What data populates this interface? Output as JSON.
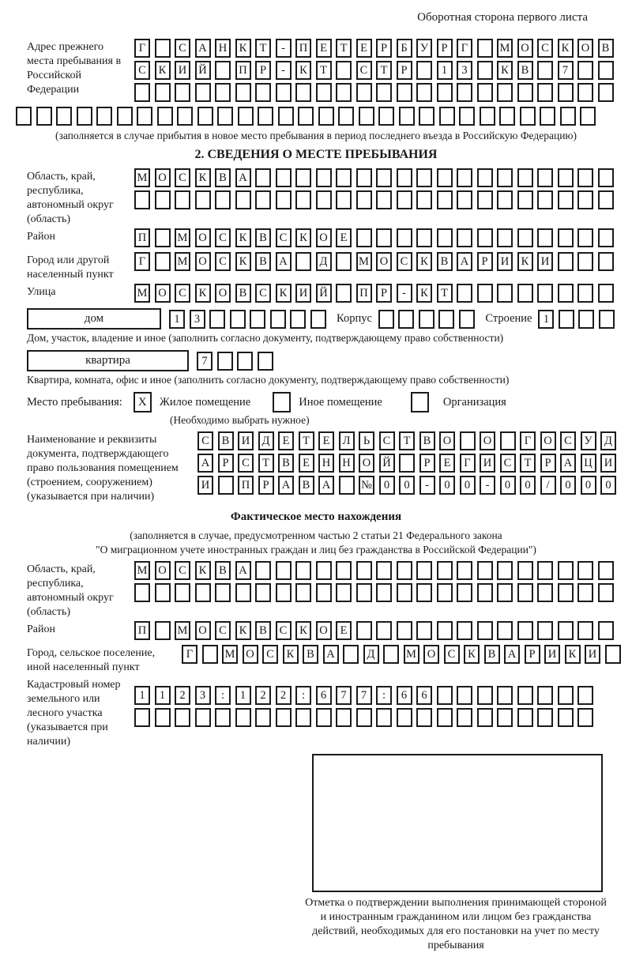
{
  "page": {
    "header_note": "Оборотная сторона первого листа"
  },
  "prev_address": {
    "label": "Адрес прежнего места пребывания в Российской Федерации",
    "row1": [
      "Г",
      "",
      "С",
      "А",
      "Н",
      "К",
      "Т",
      "-",
      "П",
      "Е",
      "Т",
      "Е",
      "Р",
      "Б",
      "У",
      "Р",
      "Г",
      "",
      "М",
      "О",
      "С",
      "К",
      "О",
      "В"
    ],
    "row2": [
      "С",
      "К",
      "И",
      "Й",
      "",
      "П",
      "Р",
      "-",
      "К",
      "Т",
      "",
      "С",
      "Т",
      "Р",
      "",
      "1",
      "3",
      "",
      "К",
      "В",
      "",
      "7",
      "",
      ""
    ],
    "row3_empty": 24,
    "row4_empty": 29,
    "caption": "(заполняется в случае прибытия в новое место пребывания в период последнего въезда в Российскую Федерацию)"
  },
  "section2": {
    "title": "2. СВЕДЕНИЯ О МЕСТЕ ПРЕБЫВАНИЯ",
    "region_label": "Область, край, республика, автономный округ (область)",
    "region_row1": [
      "М",
      "О",
      "С",
      "К",
      "В",
      "А",
      "",
      "",
      "",
      "",
      "",
      "",
      "",
      "",
      "",
      "",
      "",
      "",
      "",
      "",
      "",
      "",
      "",
      ""
    ],
    "region_row2_empty": 24,
    "district_label": "Район",
    "district_row": [
      "П",
      "",
      "М",
      "О",
      "С",
      "К",
      "В",
      "С",
      "К",
      "О",
      "Е",
      "",
      "",
      "",
      "",
      "",
      "",
      "",
      "",
      "",
      "",
      "",
      "",
      ""
    ],
    "city_label": "Город или другой населенный пункт",
    "city_row": [
      "Г",
      "",
      "М",
      "О",
      "С",
      "К",
      "В",
      "А",
      "",
      "Д",
      "",
      "М",
      "О",
      "С",
      "К",
      "В",
      "А",
      "Р",
      "И",
      "К",
      "И",
      "",
      "",
      ""
    ],
    "street_label": "Улица",
    "street_row": [
      "М",
      "О",
      "С",
      "К",
      "О",
      "В",
      "С",
      "К",
      "И",
      "Й",
      "",
      "П",
      "Р",
      "-",
      "К",
      "Т",
      "",
      "",
      "",
      "",
      "",
      "",
      "",
      ""
    ]
  },
  "house": {
    "box_label": "дом",
    "cells": [
      "1",
      "3",
      "",
      "",
      "",
      "",
      "",
      ""
    ],
    "korpus_label": "Корпус",
    "korpus_empty": 5,
    "stroenie_label": "Строение",
    "stroenie_cells": [
      "1",
      "",
      "",
      ""
    ],
    "caption": "Дом, участок, владение и иное (заполнить согласно документу, подтверждающему право собственности)"
  },
  "apartment": {
    "box_label": "квартира",
    "cells": [
      "7",
      "",
      "",
      ""
    ],
    "caption": "Квартира, комната, офис и иное (заполнить согласно документу, подтверждающему право собственности)"
  },
  "location": {
    "label": "Место пребывания:",
    "opt1_mark": "X",
    "opt1_label": "Жилое помещение",
    "opt2_mark": "",
    "opt2_label": "Иное помещение",
    "opt3_mark": "",
    "opt3_label": "Организация",
    "hint": "(Необходимо выбрать нужное)"
  },
  "doc": {
    "label": "Наименование и реквизиты документа, подтверждающего право пользования помещением (строением, сооружением) (указывается при наличии)",
    "row1": [
      "С",
      "В",
      "И",
      "Д",
      "Е",
      "Т",
      "Е",
      "Л",
      "Ь",
      "С",
      "Т",
      "В",
      "О",
      "",
      "О",
      "",
      "Г",
      "О",
      "С",
      "У",
      "Д"
    ],
    "row2": [
      "А",
      "Р",
      "С",
      "Т",
      "В",
      "Е",
      "Н",
      "Н",
      "О",
      "Й",
      "",
      "Р",
      "Е",
      "Г",
      "И",
      "С",
      "Т",
      "Р",
      "А",
      "Ц",
      "И"
    ],
    "row3": [
      "И",
      "",
      "П",
      "Р",
      "А",
      "В",
      "А",
      "",
      "№",
      "0",
      "0",
      "-",
      "0",
      "0",
      "-",
      "0",
      "0",
      "/",
      "0",
      "0",
      "0"
    ]
  },
  "actual": {
    "title": "Фактическое место нахождения",
    "caption1": "(заполняется в случае, предусмотренном частью 2 статьи 21 Федерального закона",
    "caption2": "\"О миграционном учете иностранных граждан и лиц без гражданства в Российской Федерации\")",
    "region_label": "Область, край, республика, автономный округ (область)",
    "region_row1": [
      "М",
      "О",
      "С",
      "К",
      "В",
      "А",
      "",
      "",
      "",
      "",
      "",
      "",
      "",
      "",
      "",
      "",
      "",
      "",
      "",
      "",
      "",
      "",
      "",
      ""
    ],
    "region_row2_empty": 24,
    "district_label": "Район",
    "district_row": [
      "П",
      "",
      "М",
      "О",
      "С",
      "К",
      "В",
      "С",
      "К",
      "О",
      "Е",
      "",
      "",
      "",
      "",
      "",
      "",
      "",
      "",
      "",
      "",
      "",
      "",
      ""
    ],
    "city_label": "Город, сельское поселение, иной населенный пункт",
    "city_row": [
      "Г",
      "",
      "М",
      "О",
      "С",
      "К",
      "В",
      "А",
      "",
      "Д",
      "",
      "М",
      "О",
      "С",
      "К",
      "В",
      "А",
      "Р",
      "И",
      "К",
      "И",
      ""
    ],
    "cadastral_label": "Кадастровый номер земельного или лесного участка (указывается при наличии)",
    "cadastral_row1": [
      "1",
      "1",
      "2",
      "3",
      ":",
      "1",
      "2",
      "2",
      ":",
      "6",
      "7",
      "7",
      ":",
      "6",
      "6",
      "",
      "",
      "",
      "",
      "",
      "",
      "",
      ""
    ],
    "cadastral_row2_empty": 23
  },
  "stamp": {
    "caption": "Отметка о подтверждении выполнения принимающей стороной и иностранным гражданином или лицом без гражданства действий, необходимых для его постановки на учет по месту пребывания"
  }
}
